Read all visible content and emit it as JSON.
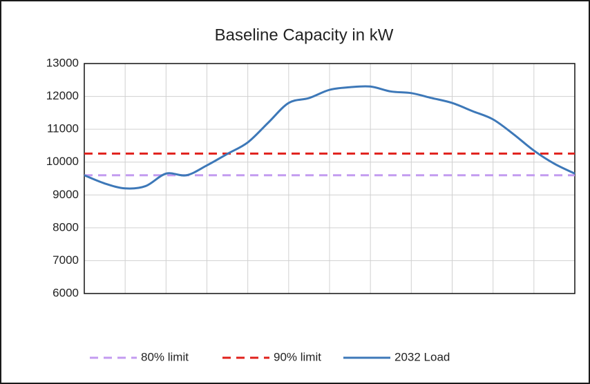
{
  "chart_data": {
    "type": "line",
    "title": "Baseline Capacity in kW",
    "categories": [
      null,
      null,
      null,
      null,
      null,
      null,
      null,
      null,
      null,
      null,
      null,
      null,
      null,
      null,
      null,
      null,
      null,
      null,
      null,
      null,
      null,
      null,
      null,
      null,
      null
    ],
    "series": [
      {
        "name": "80% limit",
        "color": "#c39bf0",
        "dash": true,
        "values": [
          9600,
          9600,
          9600,
          9600,
          9600,
          9600,
          9600,
          9600,
          9600,
          9600,
          9600,
          9600,
          9600,
          9600,
          9600,
          9600,
          9600,
          9600,
          9600,
          9600,
          9600,
          9600,
          9600,
          9600,
          9600
        ]
      },
      {
        "name": "90% limit",
        "color": "#e0201b",
        "dash": true,
        "values": [
          10260,
          10260,
          10260,
          10260,
          10260,
          10260,
          10260,
          10260,
          10260,
          10260,
          10260,
          10260,
          10260,
          10260,
          10260,
          10260,
          10260,
          10260,
          10260,
          10260,
          10260,
          10260,
          10260,
          10260,
          10260
        ]
      },
      {
        "name": "2032 Load",
        "color": "#3d78b8",
        "dash": false,
        "values": [
          9600,
          9350,
          9200,
          9270,
          9650,
          9600,
          9900,
          10250,
          10600,
          11200,
          11800,
          11950,
          12200,
          12280,
          12300,
          12150,
          12100,
          11950,
          11800,
          11550,
          11300,
          10850,
          10350,
          9950,
          9650
        ]
      }
    ],
    "ylim": [
      6000,
      13000
    ],
    "yticks": [
      6000,
      7000,
      8000,
      9000,
      10000,
      11000,
      12000,
      13000
    ],
    "grid": true,
    "legend": "bottom"
  }
}
